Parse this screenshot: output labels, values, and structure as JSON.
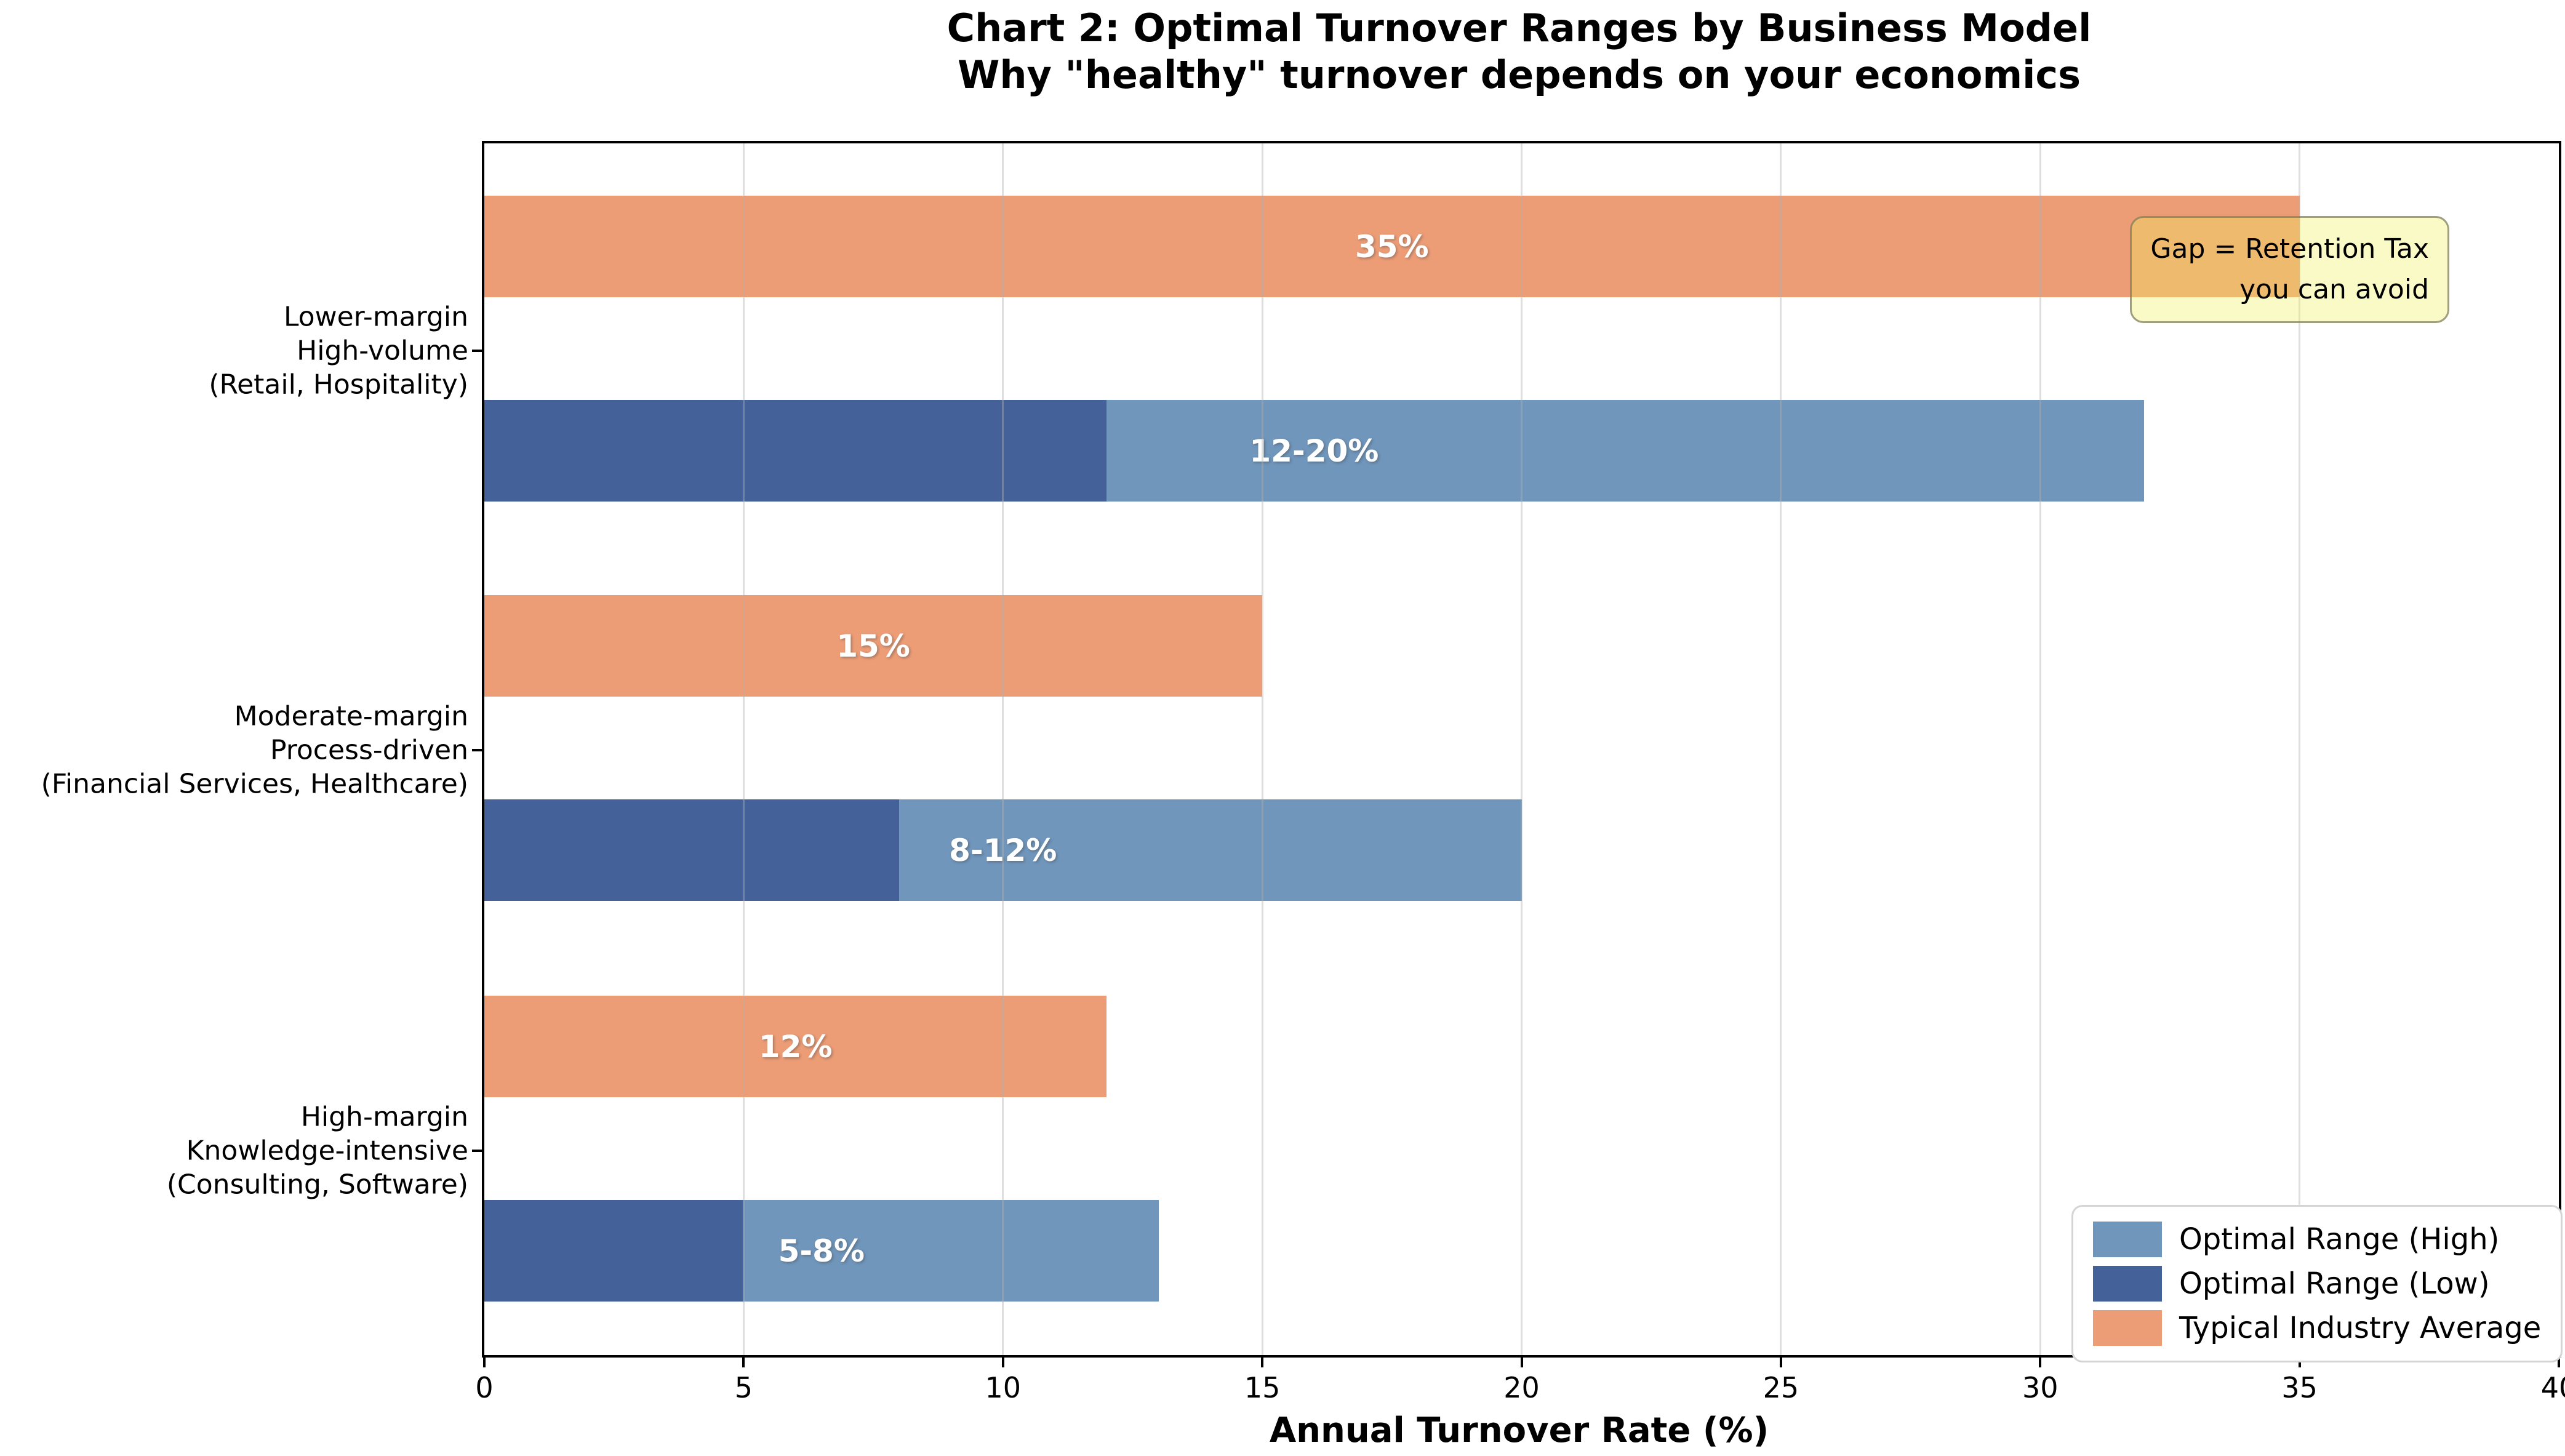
{
  "title": {
    "line1": "Chart 2: Optimal Turnover Ranges by Business Model",
    "line2": "Why \"healthy\" turnover depends on your economics"
  },
  "chart_data": {
    "type": "bar",
    "orientation": "horizontal",
    "title": "Chart 2: Optimal Turnover Ranges by Business Model",
    "subtitle": "Why \"healthy\" turnover depends on your economics",
    "xlabel": "Annual Turnover Rate (%)",
    "xlim": [
      0,
      40
    ],
    "xticks": [
      0,
      5,
      10,
      15,
      20,
      25,
      30,
      35,
      40
    ],
    "grid": "vertical gridlines at each x tick, light gray, drawn over bars",
    "legend_position": "lower right",
    "categories": [
      {
        "lines": [
          "Lower-margin",
          "High-volume",
          "(Retail, Hospitality)"
        ],
        "industry_avg": 35,
        "optimal_low": 12,
        "optimal_high": 20,
        "industry_label": "35%",
        "optimal_label": "12-20%"
      },
      {
        "lines": [
          "Moderate-margin",
          "Process-driven",
          "(Financial Services, Healthcare)"
        ],
        "industry_avg": 15,
        "optimal_low": 8,
        "optimal_high": 12,
        "industry_label": "15%",
        "optimal_label": "8-12%"
      },
      {
        "lines": [
          "High-margin",
          "Knowledge-intensive",
          "(Consulting, Software)"
        ],
        "industry_avg": 12,
        "optimal_low": 5,
        "optimal_high": 8,
        "industry_label": "12%",
        "optimal_label": "5-8%"
      }
    ],
    "series": [
      {
        "name": "Optimal Range (High)",
        "color": "#7096BC"
      },
      {
        "name": "Optimal Range (Low)",
        "color": "#44619A"
      },
      {
        "name": "Typical Industry Average",
        "color": "#ED9D76"
      }
    ],
    "note": "Optimal bars are stacked: dark segment = low value, light segment length = high value, so stacked bar ends at low+high",
    "annotation": {
      "line1": "Gap = Retention Tax",
      "line2": "you can avoid"
    }
  },
  "colors": {
    "optimal_high": "#7096BC",
    "optimal_low": "#44619A",
    "industry_avg": "#ED9D76",
    "gridline": "#B0B0B0",
    "annotation_fill": "rgba(242,242,95,0.35)",
    "annotation_border": "rgba(110,110,88,0.65)",
    "legend_border": "#D5D5D5",
    "spine": "#000000"
  }
}
